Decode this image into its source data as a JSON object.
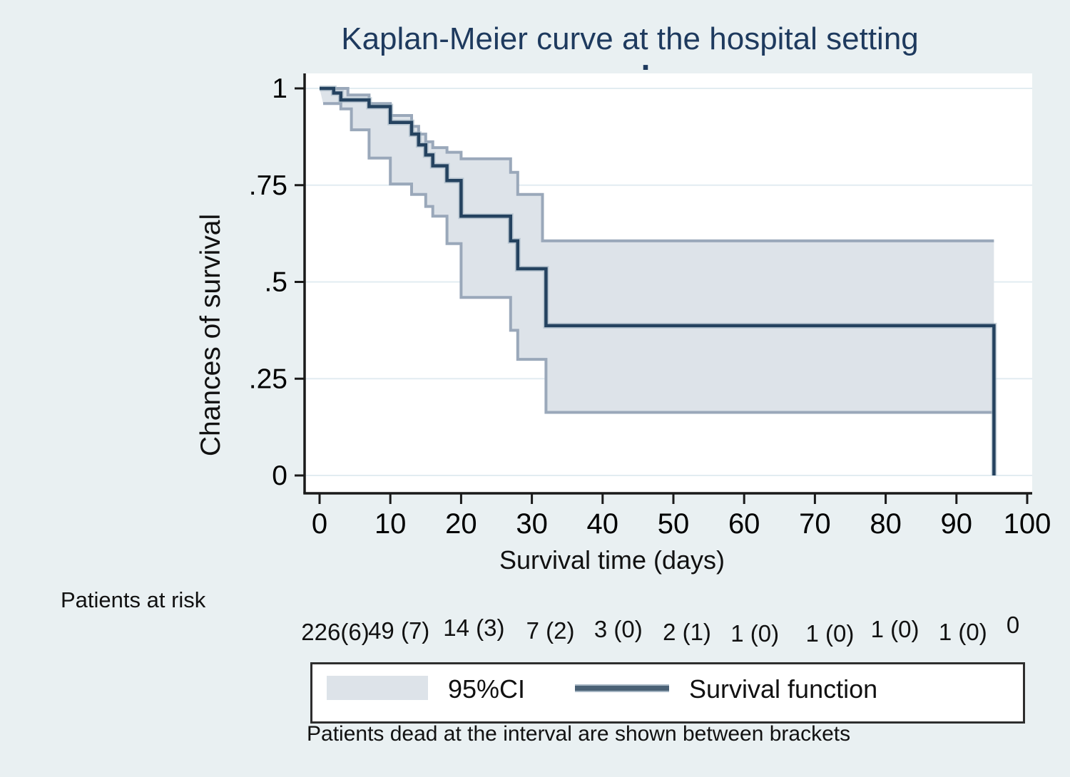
{
  "title": "Kaplan-Meier curve at the hospital setting",
  "subtitle_dot": ".",
  "axes": {
    "y_label": "Chances of survival",
    "x_label": "Survival time (days)",
    "y_tick_labels": [
      "0",
      ".25",
      ".5",
      ".75",
      "1"
    ],
    "y_tick_values": [
      0,
      0.25,
      0.5,
      0.75,
      1
    ],
    "x_tick_labels": [
      "0",
      "10",
      "20",
      "30",
      "40",
      "50",
      "60",
      "70",
      "80",
      "90",
      "100"
    ],
    "x_tick_values": [
      0,
      10,
      20,
      30,
      40,
      50,
      60,
      70,
      80,
      90,
      100
    ]
  },
  "patients_at_risk": {
    "label": "Patients at risk",
    "values": [
      "226(6)",
      "49 (7)",
      "14 (3)",
      "7 (2)",
      "3 (0)",
      "2 (1)",
      "1 (0)",
      "1 (0)",
      "1 (0)",
      "1 (0)",
      "0"
    ],
    "times": [
      0,
      10,
      20,
      30,
      40,
      50,
      60,
      70,
      80,
      90,
      100
    ]
  },
  "legend": {
    "ci_label": "95%CI",
    "line_label": "Survival function"
  },
  "footnote": "Patients dead at the interval are shown between brackets",
  "colors": {
    "background": "#e9f0f2",
    "plot_background": "#ffffff",
    "gridline": "#e2ecf1",
    "axis": "#1a1a1a",
    "title": "#1e3a5e",
    "survival_line": "#24425f",
    "survival_halo": "#9db0c0",
    "ci_fill": "#dde3e9",
    "ci_edge": "#9aa8ba",
    "legend_line": "#4a6175"
  },
  "chart_data": {
    "type": "line",
    "chart_kind": "kaplan-meier-step",
    "title": "Kaplan-Meier curve at the hospital setting",
    "xlabel": "Survival time (days)",
    "ylabel": "Chances of survival",
    "xlim": [
      0,
      100
    ],
    "ylim": [
      0,
      1
    ],
    "grid": "horizontal",
    "legend_position": "bottom",
    "series": [
      {
        "name": "Survival function",
        "style": "step",
        "points": [
          [
            0,
            1.0
          ],
          [
            2,
            0.988
          ],
          [
            3,
            0.97
          ],
          [
            7,
            0.953
          ],
          [
            10,
            0.912
          ],
          [
            13,
            0.882
          ],
          [
            14,
            0.854
          ],
          [
            15,
            0.828
          ],
          [
            16,
            0.8
          ],
          [
            18,
            0.762
          ],
          [
            20,
            0.67
          ],
          [
            27,
            0.606
          ],
          [
            28,
            0.534
          ],
          [
            32,
            0.387
          ],
          [
            95.3,
            0.387
          ],
          [
            95.3,
            0
          ]
        ]
      },
      {
        "name": "95% CI upper bound",
        "style": "step",
        "points": [
          [
            0,
            1.0
          ],
          [
            4,
            0.983
          ],
          [
            7,
            0.961
          ],
          [
            10,
            0.93
          ],
          [
            13,
            0.902
          ],
          [
            14,
            0.882
          ],
          [
            15,
            0.862
          ],
          [
            16,
            0.847
          ],
          [
            18,
            0.835
          ],
          [
            20,
            0.818
          ],
          [
            27,
            0.783
          ],
          [
            28,
            0.726
          ],
          [
            31.5,
            0.606
          ],
          [
            95.3,
            0.606
          ]
        ]
      },
      {
        "name": "95% CI lower bound",
        "style": "step",
        "points": [
          [
            0.5,
            0.961
          ],
          [
            3,
            0.947
          ],
          [
            4.5,
            0.893
          ],
          [
            7,
            0.82
          ],
          [
            10,
            0.753
          ],
          [
            13,
            0.726
          ],
          [
            15,
            0.695
          ],
          [
            16,
            0.67
          ],
          [
            18,
            0.599
          ],
          [
            20,
            0.46
          ],
          [
            27,
            0.375
          ],
          [
            28,
            0.3
          ],
          [
            32,
            0.163
          ],
          [
            95.3,
            0.163
          ]
        ]
      }
    ]
  }
}
